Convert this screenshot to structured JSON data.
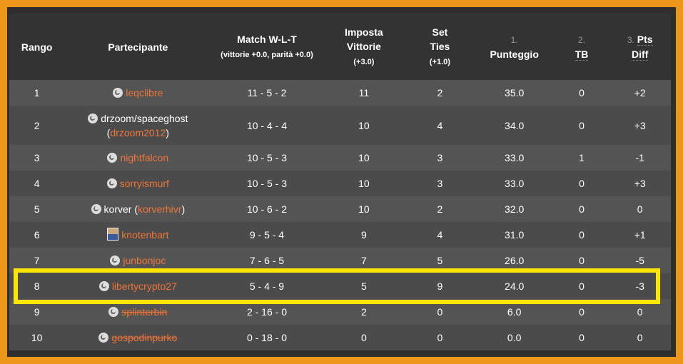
{
  "header": {
    "rank": "Rango",
    "participant": "Partecipante",
    "match_title": "Match W-L-T",
    "match_sub": "(vittorie +0.0, parità +0.0)",
    "set_wins_1": "Imposta",
    "set_wins_2": "Vittorie",
    "set_wins_sub": "(+3.0)",
    "set_ties_1": "Set",
    "set_ties_2": "Ties",
    "set_ties_sub": "(+1.0)",
    "score_num": "1.",
    "score": "Punteggio",
    "tb_num": "2.",
    "tb": "TB",
    "diff_num": "3.",
    "diff_1": "Pts",
    "diff_2": "Diff"
  },
  "highlight_color": "#ffe600",
  "link_color": "#f0743a",
  "rows": [
    {
      "rank": "1",
      "prefix": "",
      "name": "leqclibre",
      "suffix": "",
      "icon": "challonge-icon",
      "removed": false,
      "match": "11 - 5 - 2",
      "set_wins": "11",
      "set_ties": "2",
      "score": "35.0",
      "tb": "0",
      "diff": "+2"
    },
    {
      "rank": "2",
      "prefix": "drzoom/spaceghost (",
      "name": "drzoom2012",
      "suffix": ")",
      "icon": "challonge-icon",
      "removed": false,
      "match": "10 - 4 - 4",
      "set_wins": "10",
      "set_ties": "4",
      "score": "34.0",
      "tb": "0",
      "diff": "+3"
    },
    {
      "rank": "3",
      "prefix": "",
      "name": "nightfalcon",
      "suffix": "",
      "icon": "challonge-icon",
      "removed": false,
      "match": "10 - 5 - 3",
      "set_wins": "10",
      "set_ties": "3",
      "score": "33.0",
      "tb": "1",
      "diff": "-1"
    },
    {
      "rank": "4",
      "prefix": "",
      "name": "sorryismurf",
      "suffix": "",
      "icon": "challonge-icon",
      "removed": false,
      "match": "10 - 5 - 3",
      "set_wins": "10",
      "set_ties": "3",
      "score": "33.0",
      "tb": "0",
      "diff": "+3"
    },
    {
      "rank": "5",
      "prefix": "korver (",
      "name": "korverhivr",
      "suffix": ")",
      "icon": "challonge-icon",
      "removed": false,
      "match": "10 - 6 - 2",
      "set_wins": "10",
      "set_ties": "2",
      "score": "32.0",
      "tb": "0",
      "diff": "0"
    },
    {
      "rank": "6",
      "prefix": "",
      "name": "knotenbart",
      "suffix": "",
      "icon": "avatar",
      "removed": false,
      "match": "9 - 5 - 4",
      "set_wins": "9",
      "set_ties": "4",
      "score": "31.0",
      "tb": "0",
      "diff": "+1"
    },
    {
      "rank": "7",
      "prefix": "",
      "name": "junbonjoc",
      "suffix": "",
      "icon": "challonge-icon",
      "removed": false,
      "match": "7 - 6 - 5",
      "set_wins": "7",
      "set_ties": "5",
      "score": "26.0",
      "tb": "0",
      "diff": "-5"
    },
    {
      "rank": "8",
      "prefix": "",
      "name": "libertycrypto27",
      "suffix": "",
      "icon": "challonge-icon",
      "removed": false,
      "match": "5 - 4 - 9",
      "set_wins": "5",
      "set_ties": "9",
      "score": "24.0",
      "tb": "0",
      "diff": "-3"
    },
    {
      "rank": "9",
      "prefix": "",
      "name": "splinterbin",
      "suffix": "",
      "icon": "challonge-icon",
      "removed": true,
      "match": "2 - 16 - 0",
      "set_wins": "2",
      "set_ties": "0",
      "score": "6.0",
      "tb": "0",
      "diff": "0"
    },
    {
      "rank": "10",
      "prefix": "",
      "name": "gospodinpurko",
      "suffix": "",
      "icon": "challonge-icon",
      "removed": true,
      "match": "0 - 18 - 0",
      "set_wins": "0",
      "set_ties": "0",
      "score": "0.0",
      "tb": "0",
      "diff": "0"
    }
  ]
}
